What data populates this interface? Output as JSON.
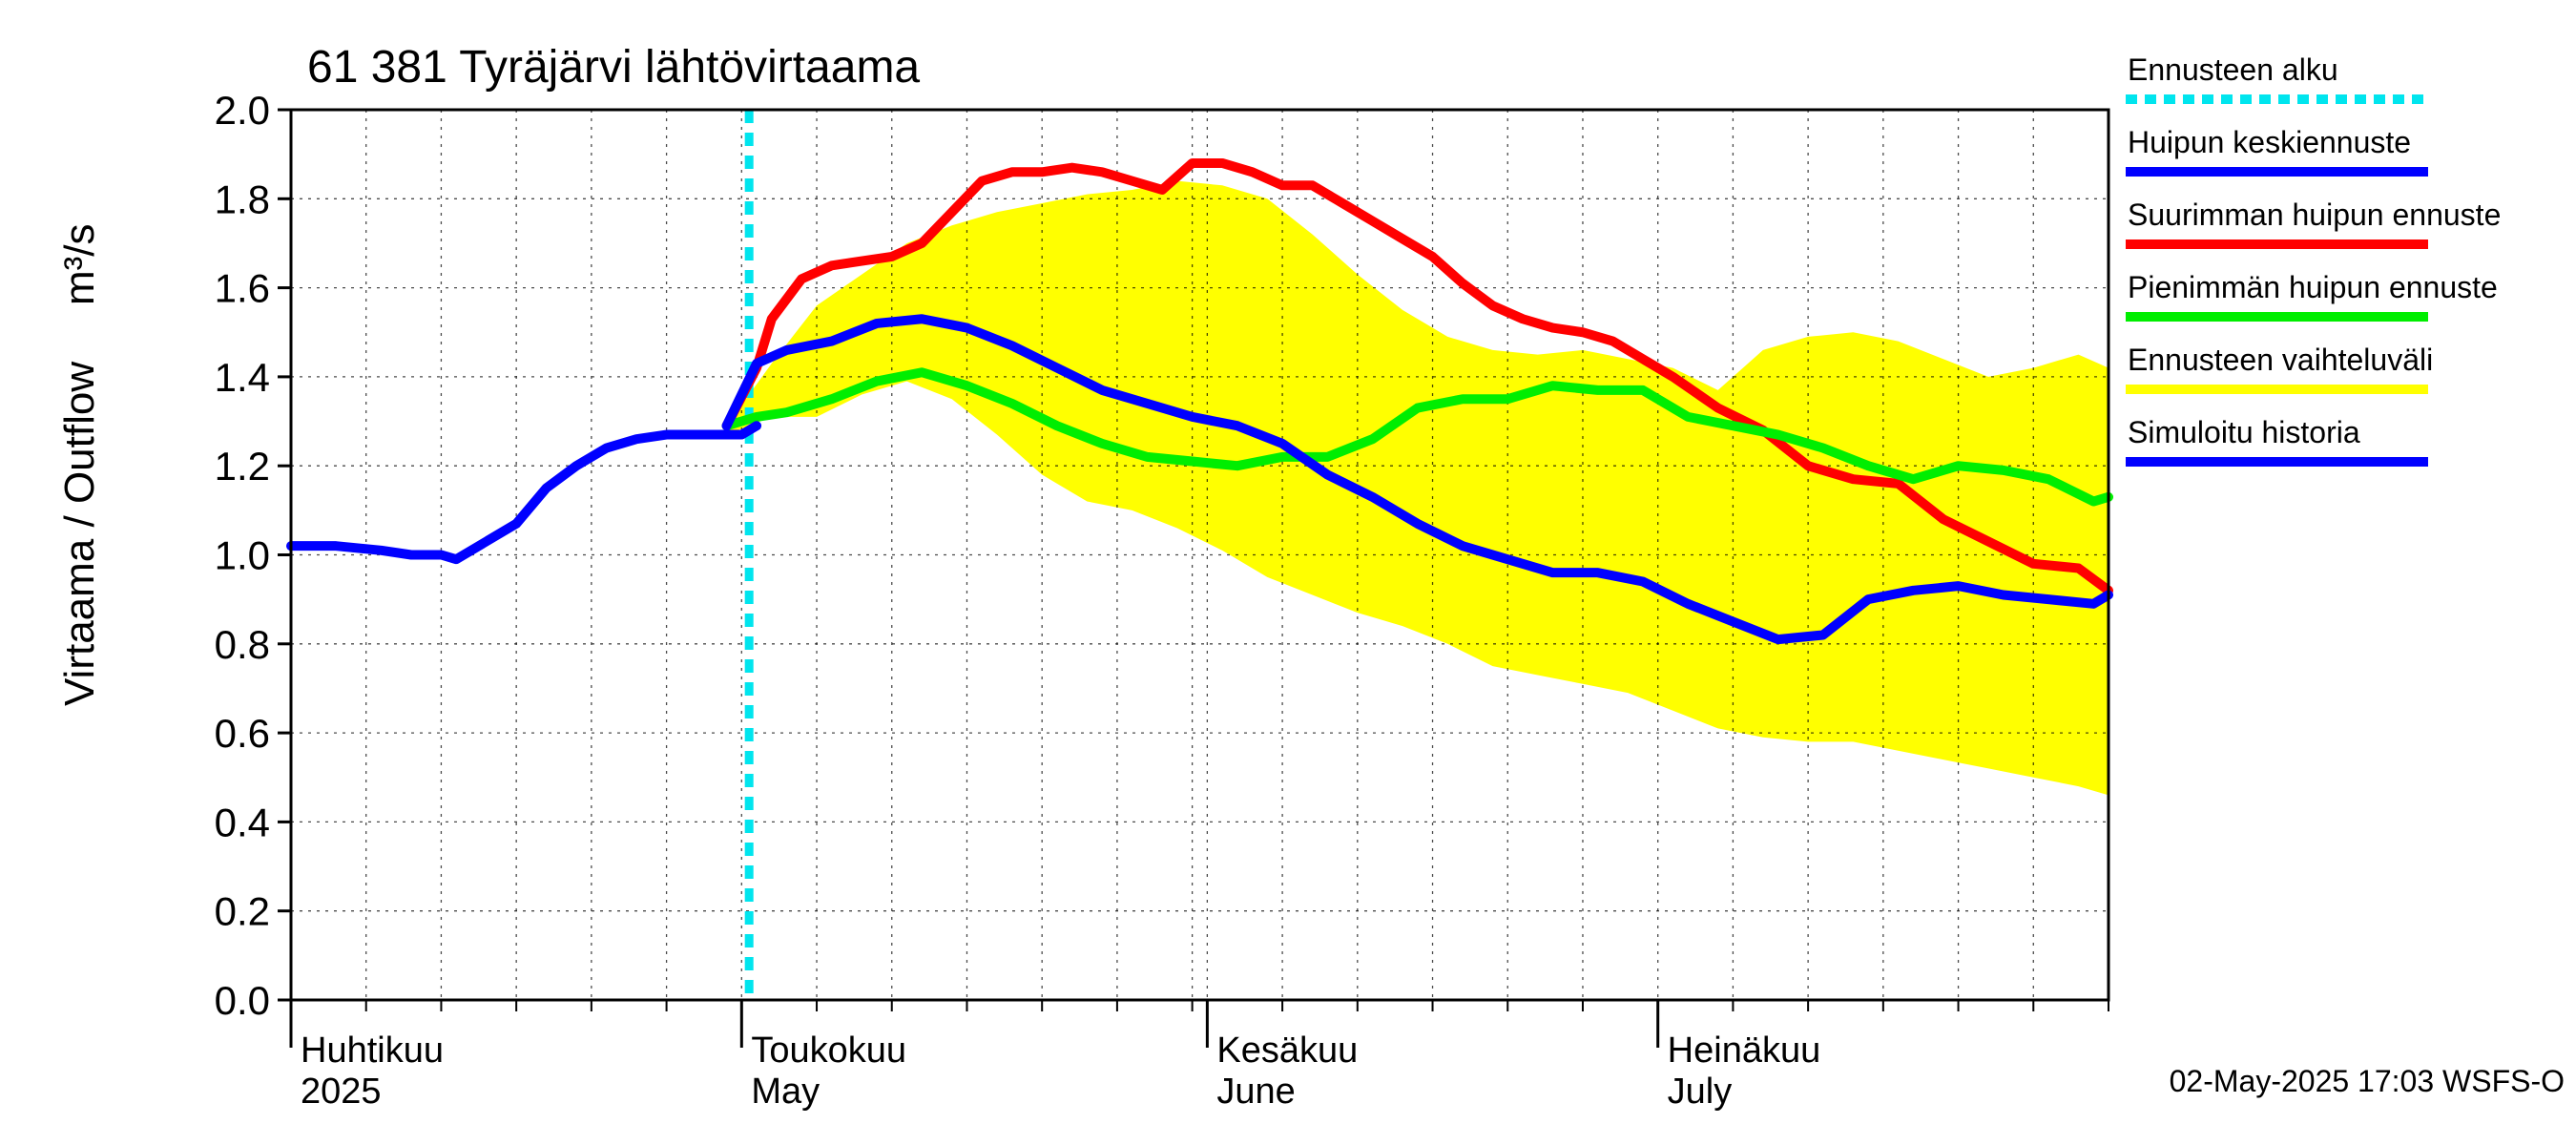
{
  "chart_data": {
    "type": "line",
    "title": "61 381 Tyräjärvi lähtövirtaama",
    "ylabel_left": "Virtaama / Outflow",
    "ylabel_unit": "m³/s",
    "ylim": [
      0.0,
      2.0
    ],
    "yticks": [
      "0.0",
      "0.2",
      "0.4",
      "0.6",
      "0.8",
      "1.0",
      "1.2",
      "1.4",
      "1.6",
      "1.8",
      "2.0"
    ],
    "x_range": [
      "2025-04-01",
      "2025-07-31"
    ],
    "grid": true,
    "legend_position": "right",
    "months": [
      {
        "fi": "Huhtikuu",
        "en": "2025",
        "date": "2025-04-01"
      },
      {
        "fi": "Toukokuu",
        "en": "May",
        "date": "2025-05-01"
      },
      {
        "fi": "Kesäkuu",
        "en": "June",
        "date": "2025-06-01"
      },
      {
        "fi": "Heinäkuu",
        "en": "July",
        "date": "2025-07-01"
      }
    ],
    "forecast_start": "2025-05-02",
    "series": [
      {
        "name": "Ennusteen vaihteluväli",
        "color": "#ffff00",
        "kind": "band",
        "x": [
          "2025-04-30",
          "2025-05-03",
          "2025-05-06",
          "2025-05-09",
          "2025-05-12",
          "2025-05-15",
          "2025-05-18",
          "2025-05-21",
          "2025-05-24",
          "2025-05-27",
          "2025-05-30",
          "2025-06-02",
          "2025-06-05",
          "2025-06-08",
          "2025-06-11",
          "2025-06-14",
          "2025-06-17",
          "2025-06-20",
          "2025-06-23",
          "2025-06-26",
          "2025-06-29",
          "2025-07-02",
          "2025-07-05",
          "2025-07-08",
          "2025-07-11",
          "2025-07-14",
          "2025-07-17",
          "2025-07-20",
          "2025-07-23",
          "2025-07-26",
          "2025-07-29",
          "2025-07-31"
        ],
        "upper": [
          1.29,
          1.43,
          1.56,
          1.63,
          1.7,
          1.74,
          1.77,
          1.79,
          1.81,
          1.82,
          1.84,
          1.83,
          1.8,
          1.72,
          1.63,
          1.55,
          1.49,
          1.46,
          1.45,
          1.46,
          1.44,
          1.42,
          1.37,
          1.46,
          1.49,
          1.5,
          1.48,
          1.44,
          1.4,
          1.42,
          1.45,
          1.42
        ],
        "lower": [
          1.27,
          1.31,
          1.31,
          1.36,
          1.39,
          1.35,
          1.27,
          1.18,
          1.12,
          1.1,
          1.06,
          1.01,
          0.95,
          0.91,
          0.87,
          0.84,
          0.8,
          0.75,
          0.73,
          0.71,
          0.69,
          0.65,
          0.61,
          0.59,
          0.58,
          0.58,
          0.56,
          0.54,
          0.52,
          0.5,
          0.48,
          0.46
        ]
      },
      {
        "name": "Suurimman huipun ennuste",
        "color": "#ff0000",
        "x": [
          "2025-04-30",
          "2025-05-02",
          "2025-05-03",
          "2025-05-05",
          "2025-05-07",
          "2025-05-09",
          "2025-05-11",
          "2025-05-13",
          "2025-05-15",
          "2025-05-17",
          "2025-05-19",
          "2025-05-21",
          "2025-05-23",
          "2025-05-25",
          "2025-05-27",
          "2025-05-29",
          "2025-05-31",
          "2025-06-02",
          "2025-06-04",
          "2025-06-06",
          "2025-06-08",
          "2025-06-10",
          "2025-06-12",
          "2025-06-14",
          "2025-06-16",
          "2025-06-18",
          "2025-06-20",
          "2025-06-22",
          "2025-06-24",
          "2025-06-26",
          "2025-06-28",
          "2025-06-30",
          "2025-07-02",
          "2025-07-05",
          "2025-07-08",
          "2025-07-11",
          "2025-07-14",
          "2025-07-17",
          "2025-07-20",
          "2025-07-23",
          "2025-07-26",
          "2025-07-29",
          "2025-07-31"
        ],
        "values": [
          1.29,
          1.42,
          1.53,
          1.62,
          1.65,
          1.66,
          1.67,
          1.7,
          1.77,
          1.84,
          1.86,
          1.86,
          1.87,
          1.86,
          1.84,
          1.82,
          1.88,
          1.88,
          1.86,
          1.83,
          1.83,
          1.79,
          1.75,
          1.71,
          1.67,
          1.61,
          1.56,
          1.53,
          1.51,
          1.5,
          1.48,
          1.44,
          1.4,
          1.33,
          1.28,
          1.2,
          1.17,
          1.16,
          1.08,
          1.03,
          0.98,
          0.97,
          0.92
        ]
      },
      {
        "name": "Pienimmän huipun ennuste",
        "color": "#00ee00",
        "x": [
          "2025-04-30",
          "2025-05-02",
          "2025-05-04",
          "2025-05-07",
          "2025-05-10",
          "2025-05-13",
          "2025-05-16",
          "2025-05-19",
          "2025-05-22",
          "2025-05-25",
          "2025-05-28",
          "2025-05-31",
          "2025-06-03",
          "2025-06-06",
          "2025-06-09",
          "2025-06-12",
          "2025-06-15",
          "2025-06-18",
          "2025-06-21",
          "2025-06-24",
          "2025-06-27",
          "2025-06-30",
          "2025-07-03",
          "2025-07-06",
          "2025-07-09",
          "2025-07-12",
          "2025-07-15",
          "2025-07-18",
          "2025-07-21",
          "2025-07-24",
          "2025-07-27",
          "2025-07-30",
          "2025-07-31"
        ],
        "values": [
          1.29,
          1.31,
          1.32,
          1.35,
          1.39,
          1.41,
          1.38,
          1.34,
          1.29,
          1.25,
          1.22,
          1.21,
          1.2,
          1.22,
          1.22,
          1.26,
          1.33,
          1.35,
          1.35,
          1.38,
          1.37,
          1.37,
          1.31,
          1.29,
          1.27,
          1.24,
          1.2,
          1.17,
          1.2,
          1.19,
          1.17,
          1.12,
          1.13
        ]
      },
      {
        "name": "Huipun keskiennuste",
        "color": "#0000ff",
        "x": [
          "2025-04-30",
          "2025-05-02",
          "2025-05-04",
          "2025-05-07",
          "2025-05-10",
          "2025-05-13",
          "2025-05-16",
          "2025-05-19",
          "2025-05-22",
          "2025-05-25",
          "2025-05-28",
          "2025-05-31",
          "2025-06-03",
          "2025-06-06",
          "2025-06-09",
          "2025-06-12",
          "2025-06-15",
          "2025-06-18",
          "2025-06-21",
          "2025-06-24",
          "2025-06-27",
          "2025-06-30",
          "2025-07-03",
          "2025-07-06",
          "2025-07-09",
          "2025-07-12",
          "2025-07-15",
          "2025-07-18",
          "2025-07-21",
          "2025-07-24",
          "2025-07-27",
          "2025-07-30",
          "2025-07-31"
        ],
        "values": [
          1.29,
          1.43,
          1.46,
          1.48,
          1.52,
          1.53,
          1.51,
          1.47,
          1.42,
          1.37,
          1.34,
          1.31,
          1.29,
          1.25,
          1.18,
          1.13,
          1.07,
          1.02,
          0.99,
          0.96,
          0.96,
          0.94,
          0.89,
          0.85,
          0.81,
          0.82,
          0.9,
          0.92,
          0.93,
          0.91,
          0.9,
          0.89,
          0.91
        ]
      },
      {
        "name": "Simuloitu historia",
        "color": "#0000ff",
        "x": [
          "2025-04-01",
          "2025-04-04",
          "2025-04-07",
          "2025-04-09",
          "2025-04-11",
          "2025-04-12",
          "2025-04-14",
          "2025-04-16",
          "2025-04-18",
          "2025-04-20",
          "2025-04-22",
          "2025-04-24",
          "2025-04-26",
          "2025-04-28",
          "2025-04-30",
          "2025-05-01",
          "2025-05-02"
        ],
        "values": [
          1.02,
          1.02,
          1.01,
          1.0,
          1.0,
          0.99,
          1.03,
          1.07,
          1.15,
          1.2,
          1.24,
          1.26,
          1.27,
          1.27,
          1.27,
          1.27,
          1.29
        ]
      }
    ],
    "legend": [
      {
        "label": "Ennusteen alku",
        "color": "#00e5ee",
        "style": "dotted"
      },
      {
        "label": "Huipun keskiennuste",
        "color": "#0000ff",
        "style": "solid"
      },
      {
        "label": "Suurimman huipun ennuste",
        "color": "#ff0000",
        "style": "solid"
      },
      {
        "label": "Pienimmän huipun ennuste",
        "color": "#00ee00",
        "style": "solid"
      },
      {
        "label": "Ennusteen vaihteluväli",
        "color": "#ffff00",
        "style": "solid"
      },
      {
        "label": "Simuloitu historia",
        "color": "#0000ff",
        "style": "solid"
      }
    ],
    "footer": "02-May-2025 17:03 WSFS-O"
  }
}
